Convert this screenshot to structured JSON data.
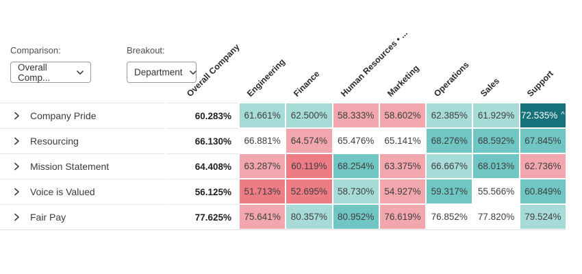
{
  "controls": [
    {
      "id": "comparison",
      "label": "Comparison:",
      "value": "Overall Comp..."
    },
    {
      "id": "breakout",
      "label": "Breakout:",
      "value": "Department"
    }
  ],
  "palette": {
    "dark_teal": "#16717a",
    "med_teal": "#6fc6c2",
    "light_teal": "#a7dbd8",
    "white": "#ffffff",
    "pink": "#f2a6ae",
    "red": "#ee7c85"
  },
  "columns": [
    "Overall Company",
    "Engineering",
    "Finance",
    "Human Resources • ...",
    "Marketing",
    "Operations",
    "Sales",
    "Support"
  ],
  "chart_data": {
    "type": "heatmap",
    "title": "",
    "x_categories": [
      "Engineering",
      "Finance",
      "Human Resources • ...",
      "Marketing",
      "Operations",
      "Sales",
      "Support"
    ],
    "y_categories": [
      "Company Pride",
      "Resourcing",
      "Mission Statement",
      "Voice is Valued",
      "Fair Pay"
    ],
    "overall_values": [
      60.283,
      66.13,
      64.408,
      56.125,
      77.625
    ],
    "values": [
      [
        61.661,
        62.5,
        58.333,
        58.602,
        62.385,
        61.929,
        72.535
      ],
      [
        66.881,
        64.574,
        65.476,
        65.141,
        68.276,
        68.592,
        67.845
      ],
      [
        63.287,
        60.119,
        68.254,
        63.375,
        66.667,
        68.013,
        62.736
      ],
      [
        51.713,
        52.695,
        58.73,
        54.927,
        59.317,
        55.566,
        60.849
      ],
      [
        75.641,
        80.357,
        80.952,
        76.619,
        76.852,
        77.82,
        79.524
      ]
    ]
  },
  "rows": [
    {
      "label": "Company Pride",
      "overall": "60.283%",
      "cells": [
        {
          "value": "61.661%",
          "tone": "light_teal"
        },
        {
          "value": "62.500%",
          "tone": "light_teal"
        },
        {
          "value": "58.333%",
          "tone": "pink"
        },
        {
          "value": "58.602%",
          "tone": "pink"
        },
        {
          "value": "62.385%",
          "tone": "light_teal"
        },
        {
          "value": "61.929%",
          "tone": "light_teal"
        },
        {
          "value": "72.535%",
          "tone": "dark_teal",
          "marker": "^"
        }
      ]
    },
    {
      "label": "Resourcing",
      "overall": "66.130%",
      "cells": [
        {
          "value": "66.881%",
          "tone": "white"
        },
        {
          "value": "64.574%",
          "tone": "pink"
        },
        {
          "value": "65.476%",
          "tone": "white"
        },
        {
          "value": "65.141%",
          "tone": "white"
        },
        {
          "value": "68.276%",
          "tone": "med_teal"
        },
        {
          "value": "68.592%",
          "tone": "med_teal"
        },
        {
          "value": "67.845%",
          "tone": "med_teal"
        }
      ]
    },
    {
      "label": "Mission Statement",
      "overall": "64.408%",
      "cells": [
        {
          "value": "63.287%",
          "tone": "pink"
        },
        {
          "value": "60.119%",
          "tone": "red"
        },
        {
          "value": "68.254%",
          "tone": "med_teal"
        },
        {
          "value": "63.375%",
          "tone": "pink"
        },
        {
          "value": "66.667%",
          "tone": "light_teal"
        },
        {
          "value": "68.013%",
          "tone": "med_teal"
        },
        {
          "value": "62.736%",
          "tone": "pink"
        }
      ]
    },
    {
      "label": "Voice is Valued",
      "overall": "56.125%",
      "cells": [
        {
          "value": "51.713%",
          "tone": "red"
        },
        {
          "value": "52.695%",
          "tone": "red"
        },
        {
          "value": "58.730%",
          "tone": "light_teal"
        },
        {
          "value": "54.927%",
          "tone": "pink"
        },
        {
          "value": "59.317%",
          "tone": "med_teal"
        },
        {
          "value": "55.566%",
          "tone": "white"
        },
        {
          "value": "60.849%",
          "tone": "med_teal"
        }
      ]
    },
    {
      "label": "Fair Pay",
      "overall": "77.625%",
      "cells": [
        {
          "value": "75.641%",
          "tone": "pink"
        },
        {
          "value": "80.357%",
          "tone": "light_teal"
        },
        {
          "value": "80.952%",
          "tone": "med_teal"
        },
        {
          "value": "76.619%",
          "tone": "pink"
        },
        {
          "value": "76.852%",
          "tone": "white"
        },
        {
          "value": "77.820%",
          "tone": "white"
        },
        {
          "value": "79.524%",
          "tone": "light_teal"
        }
      ]
    }
  ]
}
